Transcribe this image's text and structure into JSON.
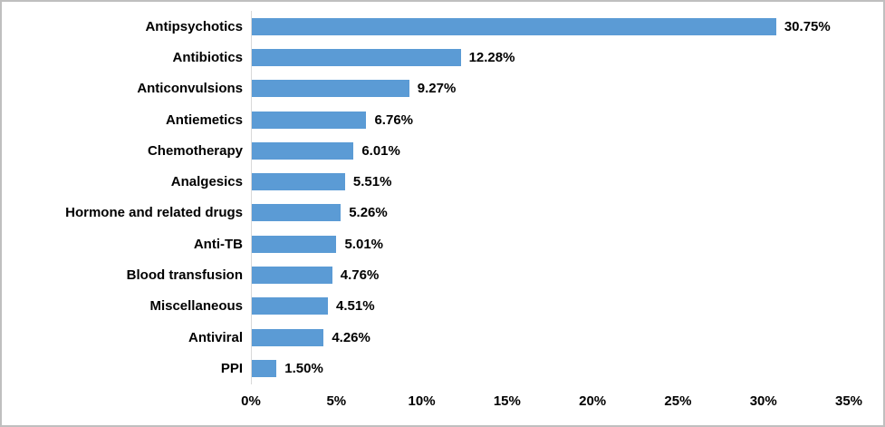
{
  "chart_data": {
    "type": "bar",
    "orientation": "horizontal",
    "title": "",
    "xlabel": "",
    "ylabel": "",
    "categories": [
      "Antipsychotics",
      "Antibiotics",
      "Anticonvulsions",
      "Antiemetics",
      "Chemotherapy",
      "Analgesics",
      "Hormone and related drugs",
      "Anti-TB",
      "Blood transfusion",
      "Miscellaneous",
      "Antiviral",
      "PPI"
    ],
    "values": [
      30.75,
      12.28,
      9.27,
      6.76,
      6.01,
      5.51,
      5.26,
      5.01,
      4.76,
      4.51,
      4.26,
      1.5
    ],
    "value_labels": [
      "30.75%",
      "12.28%",
      "9.27%",
      "6.76%",
      "6.01%",
      "5.51%",
      "5.26%",
      "5.01%",
      "4.76%",
      "4.51%",
      "4.26%",
      "1.50%"
    ],
    "x_ticks": [
      "0%",
      "5%",
      "10%",
      "15%",
      "20%",
      "25%",
      "30%",
      "35%"
    ],
    "x_tick_values": [
      0,
      5,
      10,
      15,
      20,
      25,
      30,
      35
    ],
    "xlim": [
      0,
      35
    ],
    "grid": false,
    "legend": false,
    "data_labels": true,
    "bar_color": "#5b9bd5",
    "axis_line_color": "#d9d9d9",
    "text_color": "#000000",
    "frame_border_color": "#bfbfbf"
  }
}
